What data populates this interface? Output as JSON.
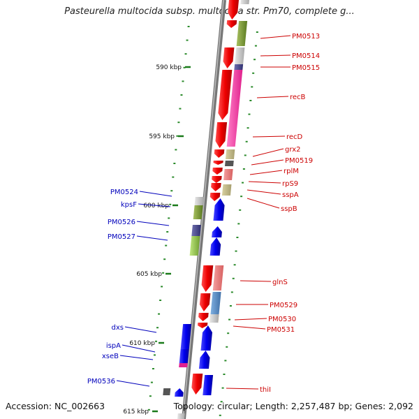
{
  "title": "Pasteurella multocida subsp. multocida str. Pm70, complete g...",
  "footer": {
    "accession": "Accession: NC_002663",
    "summary": "Topology: circular; Length: 2,257,487 bp; Genes: 2,092"
  },
  "scale_labels": [
    "590 kbp",
    "595 kbp",
    "600 kbp",
    "605 kbp",
    "610 kbp",
    "615 kbp"
  ],
  "right_labels": [
    "PM0513",
    "PM0514",
    "PM0515",
    "recB",
    "recD",
    "grx2",
    "PM0519",
    "rplM",
    "rpS9",
    "sspA",
    "sspB",
    "glnS",
    "PM0529",
    "PM0530",
    "PM0531",
    "thiI"
  ],
  "left_labels": [
    "PM0524",
    "kpsF",
    "PM0526",
    "PM0527",
    "dxs",
    "ispA",
    "xseB",
    "PM0536"
  ],
  "colors": {
    "forward_gene": "#ee1111",
    "reverse_gene": "#1111ee",
    "right_label": "#cc0000",
    "left_label": "#0000bb",
    "backbone": "#888888",
    "tick": "#2a8a2a"
  }
}
